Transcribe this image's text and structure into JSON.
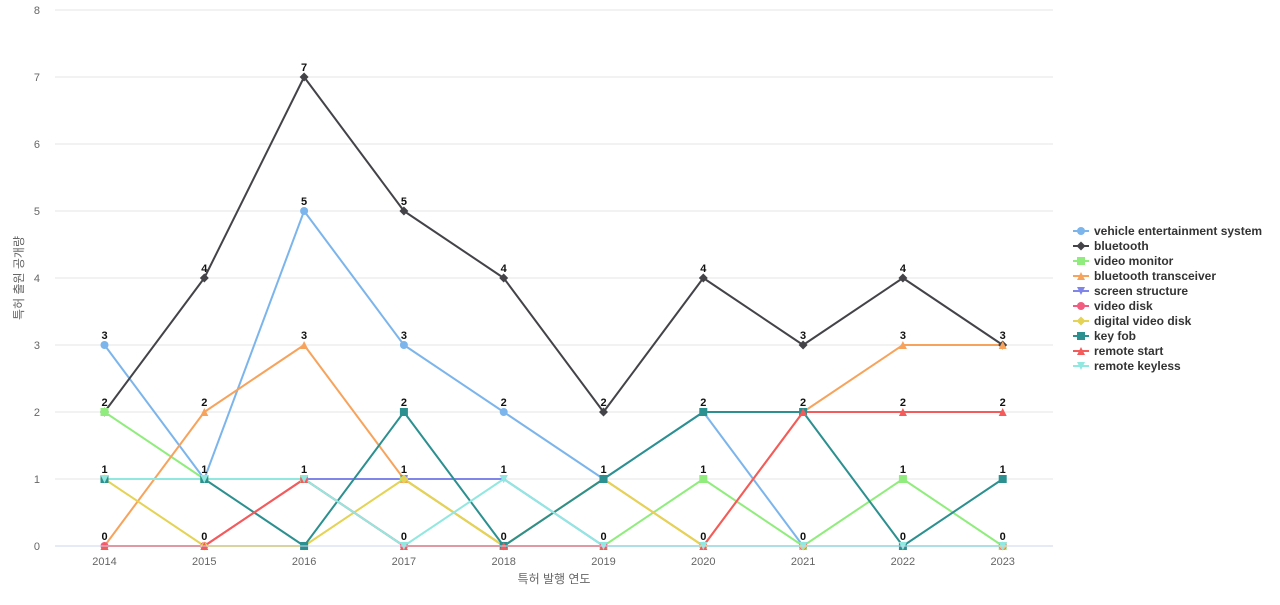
{
  "chart_data": {
    "type": "line",
    "title": "",
    "xlabel": "특허 발행 연도",
    "ylabel": "특허 출원 공개량",
    "ylim": [
      0,
      8
    ],
    "yticks": [
      0,
      1,
      2,
      3,
      4,
      5,
      6,
      7,
      8
    ],
    "grid": true,
    "legend_position": "right",
    "categories": [
      "2014",
      "2015",
      "2016",
      "2017",
      "2018",
      "2019",
      "2020",
      "2021",
      "2022",
      "2023"
    ],
    "series": [
      {
        "name": "vehicle entertainment system",
        "color": "#7cb5ec",
        "marker": "circle",
        "values": [
          3,
          1,
          5,
          3,
          2,
          1,
          2,
          0,
          0,
          0
        ]
      },
      {
        "name": "bluetooth",
        "color": "#434348",
        "marker": "diamond",
        "values": [
          2,
          4,
          7,
          5,
          4,
          2,
          4,
          3,
          4,
          3
        ]
      },
      {
        "name": "video monitor",
        "color": "#90ed7d",
        "marker": "square",
        "values": [
          2,
          1,
          1,
          1,
          0,
          0,
          1,
          0,
          1,
          0
        ]
      },
      {
        "name": "bluetooth transceiver",
        "color": "#f7a35c",
        "marker": "triangle",
        "values": [
          0,
          2,
          3,
          1,
          0,
          1,
          0,
          2,
          3,
          3
        ]
      },
      {
        "name": "screen structure",
        "color": "#8085e9",
        "marker": "triangle-down",
        "values": [
          1,
          1,
          1,
          1,
          1,
          0,
          0,
          0,
          0,
          0
        ]
      },
      {
        "name": "video disk",
        "color": "#f15c80",
        "marker": "circle",
        "values": [
          0,
          0,
          1,
          0,
          0,
          0,
          0,
          0,
          0,
          0
        ]
      },
      {
        "name": "digital video disk",
        "color": "#e4d354",
        "marker": "diamond",
        "values": [
          1,
          0,
          0,
          1,
          0,
          1,
          0,
          0,
          0,
          0
        ]
      },
      {
        "name": "key fob",
        "color": "#2b908f",
        "marker": "square",
        "values": [
          1,
          1,
          0,
          2,
          0,
          1,
          2,
          2,
          0,
          1
        ]
      },
      {
        "name": "remote start",
        "color": "#f45b5b",
        "marker": "triangle",
        "values": [
          0,
          0,
          1,
          0,
          0,
          0,
          0,
          2,
          2,
          2
        ]
      },
      {
        "name": "remote keyless",
        "color": "#91e8e1",
        "marker": "triangle-down",
        "values": [
          1,
          1,
          1,
          0,
          1,
          0,
          0,
          0,
          0,
          0
        ]
      }
    ],
    "data_labels": [
      {
        "category": "2014",
        "values": [
          3,
          2,
          1,
          0
        ]
      },
      {
        "category": "2015",
        "values": [
          4,
          2,
          1,
          0
        ]
      },
      {
        "category": "2016",
        "values": [
          7,
          5,
          3,
          1
        ]
      },
      {
        "category": "2017",
        "values": [
          5,
          3,
          2,
          1,
          0
        ]
      },
      {
        "category": "2018",
        "values": [
          4,
          2,
          1,
          0
        ]
      },
      {
        "category": "2019",
        "values": [
          2,
          1,
          0
        ]
      },
      {
        "category": "2020",
        "values": [
          4,
          2,
          1,
          0
        ]
      },
      {
        "category": "2021",
        "values": [
          3,
          2,
          0
        ]
      },
      {
        "category": "2022",
        "values": [
          4,
          3,
          2,
          1,
          0
        ]
      },
      {
        "category": "2023",
        "values": [
          3,
          2,
          1,
          0
        ]
      }
    ]
  }
}
